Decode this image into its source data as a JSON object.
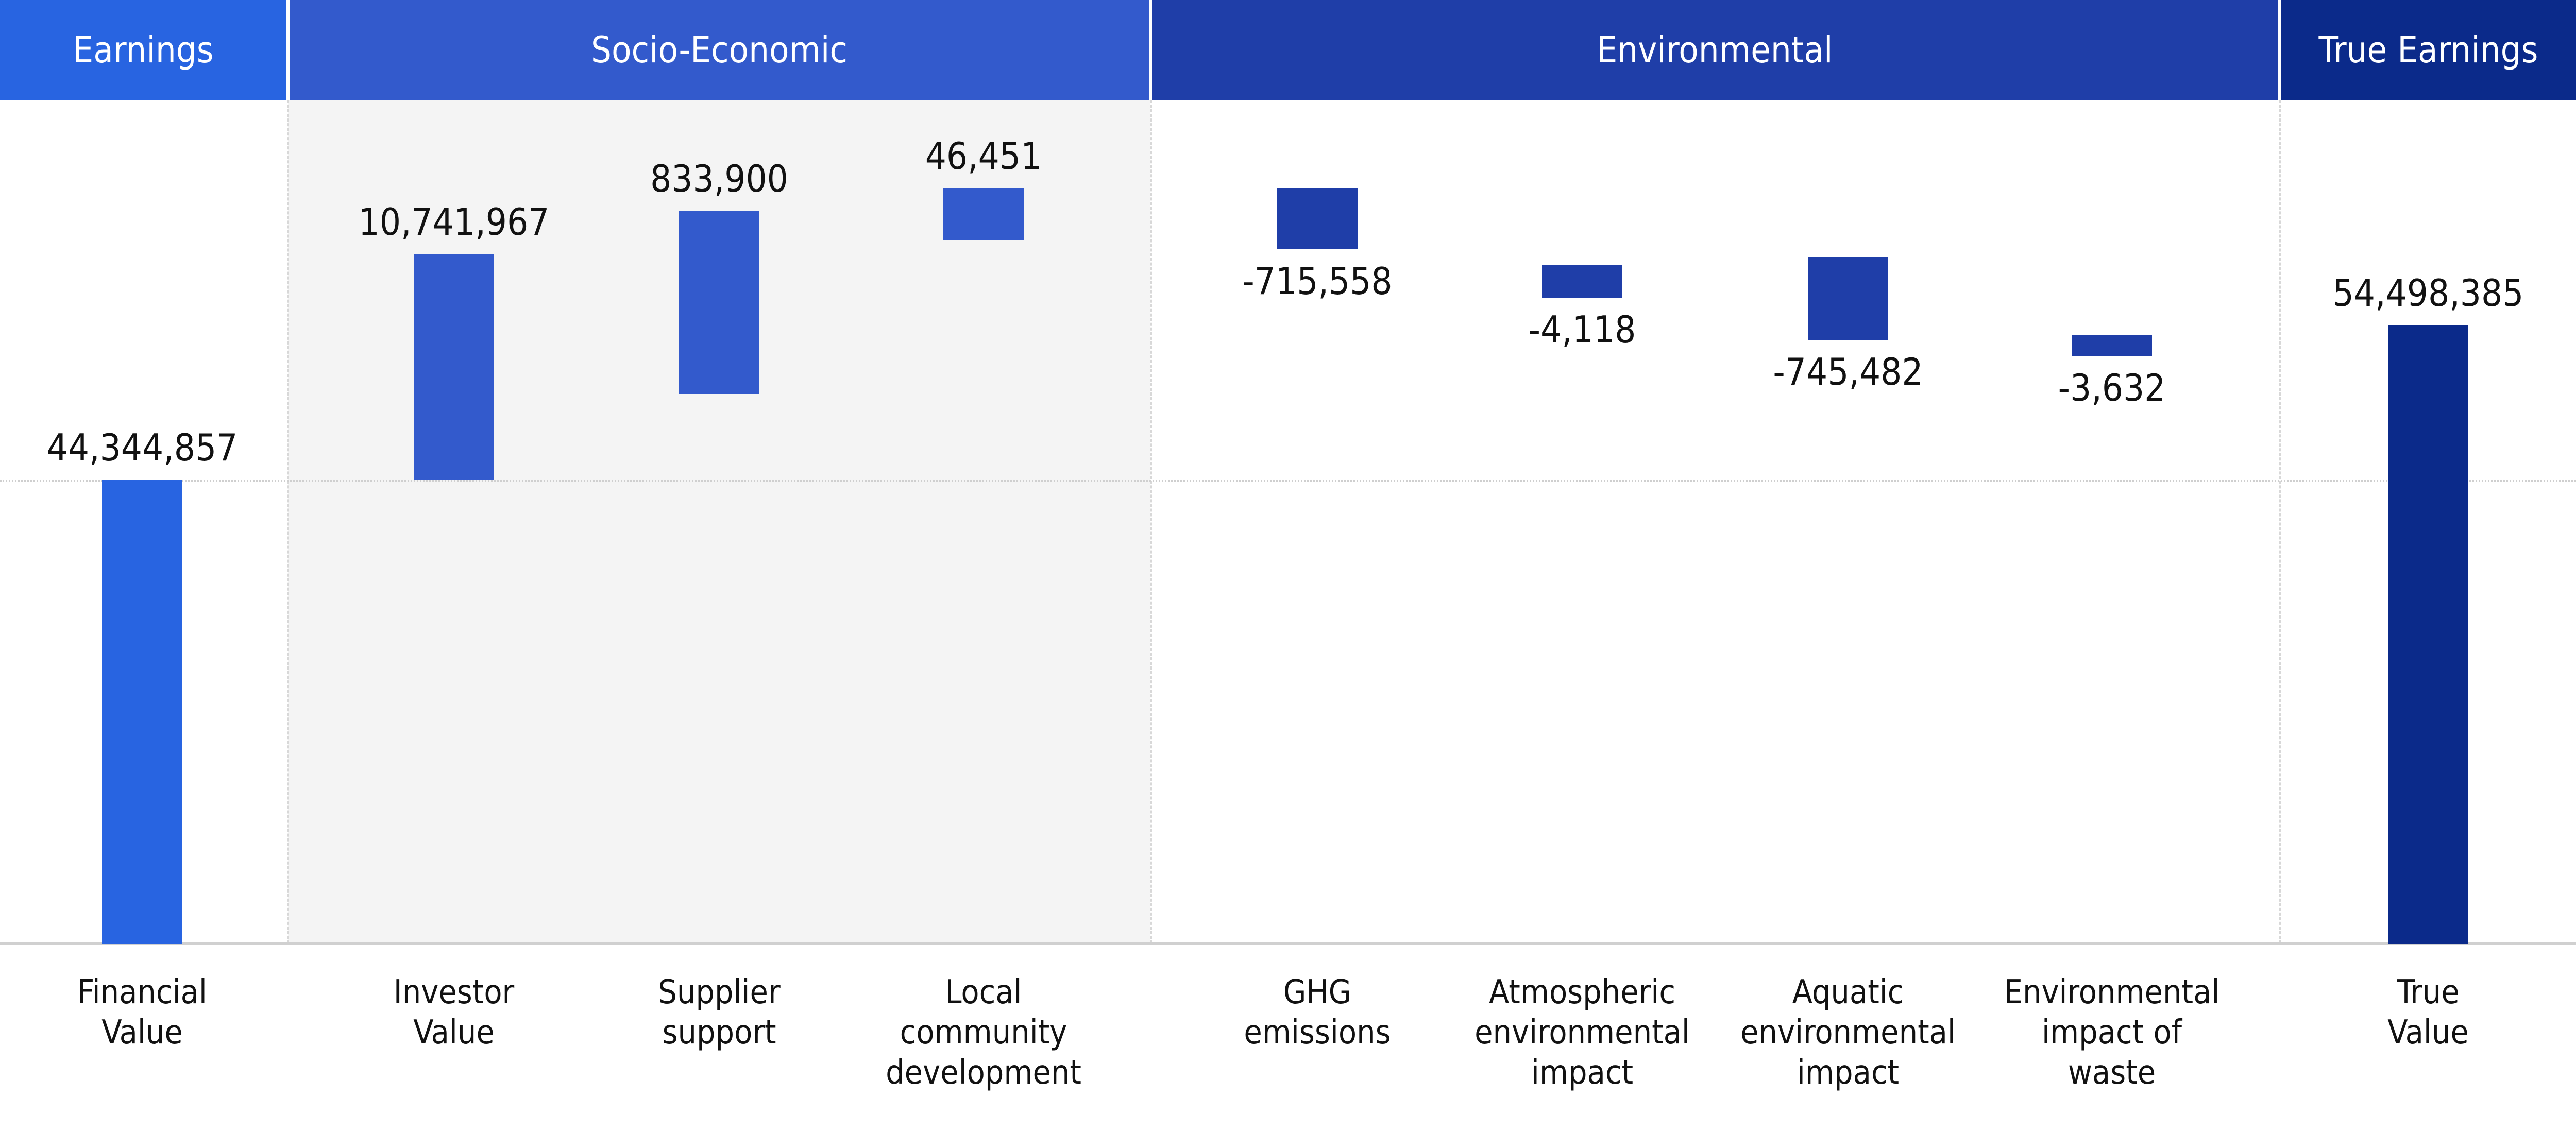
{
  "colors": {
    "earnings": "#2864e1",
    "socio": "#335acc",
    "environmental": "#1f3ea8",
    "true_earnings": "#0b2a8a",
    "socio_panel_bg": "#f4f4f4"
  },
  "headers": [
    {
      "key": "earnings",
      "label": "Earnings"
    },
    {
      "key": "socio",
      "label": "Socio-Economic"
    },
    {
      "key": "environmental",
      "label": "Environmental"
    },
    {
      "key": "true_earnings",
      "label": "True Earnings"
    }
  ],
  "chart_data": {
    "type": "bar",
    "subtype": "waterfall",
    "title": "",
    "xlabel": "",
    "ylabel": "",
    "grid": false,
    "categories": [
      "Financial Value",
      "Investor Value",
      "Supplier support",
      "Local community development",
      "GHG emissions",
      "Atmospheric environmental impact",
      "Aquatic environmental impact",
      "Environmental impact of waste",
      "True Value"
    ],
    "category_lines": [
      [
        "Financial",
        "Value"
      ],
      [
        "Investor",
        "Value"
      ],
      [
        "Supplier",
        "support"
      ],
      [
        "Local",
        "community",
        "development"
      ],
      [
        "GHG",
        "emissions"
      ],
      [
        "Atmospheric",
        "environmental",
        "impact"
      ],
      [
        "Aquatic",
        "environmental",
        "impact"
      ],
      [
        "Environmental",
        "impact of",
        "waste"
      ],
      [
        "True",
        "Value"
      ]
    ],
    "groups": [
      "earnings",
      "socio",
      "socio",
      "socio",
      "environmental",
      "environmental",
      "environmental",
      "environmental",
      "true_earnings"
    ],
    "values": [
      44344857,
      10741967,
      833900,
      46451,
      -715558,
      -4118,
      -745482,
      -3632,
      54498385
    ],
    "value_labels": [
      "44,344,857",
      "10,741,967",
      "833,900",
      "46,451",
      "-715,558",
      "-4,118",
      "-745,482",
      "-3,632",
      "54,498,385"
    ],
    "kinds": [
      "total",
      "delta",
      "delta",
      "delta",
      "delta",
      "delta",
      "delta",
      "delta",
      "total"
    ]
  }
}
